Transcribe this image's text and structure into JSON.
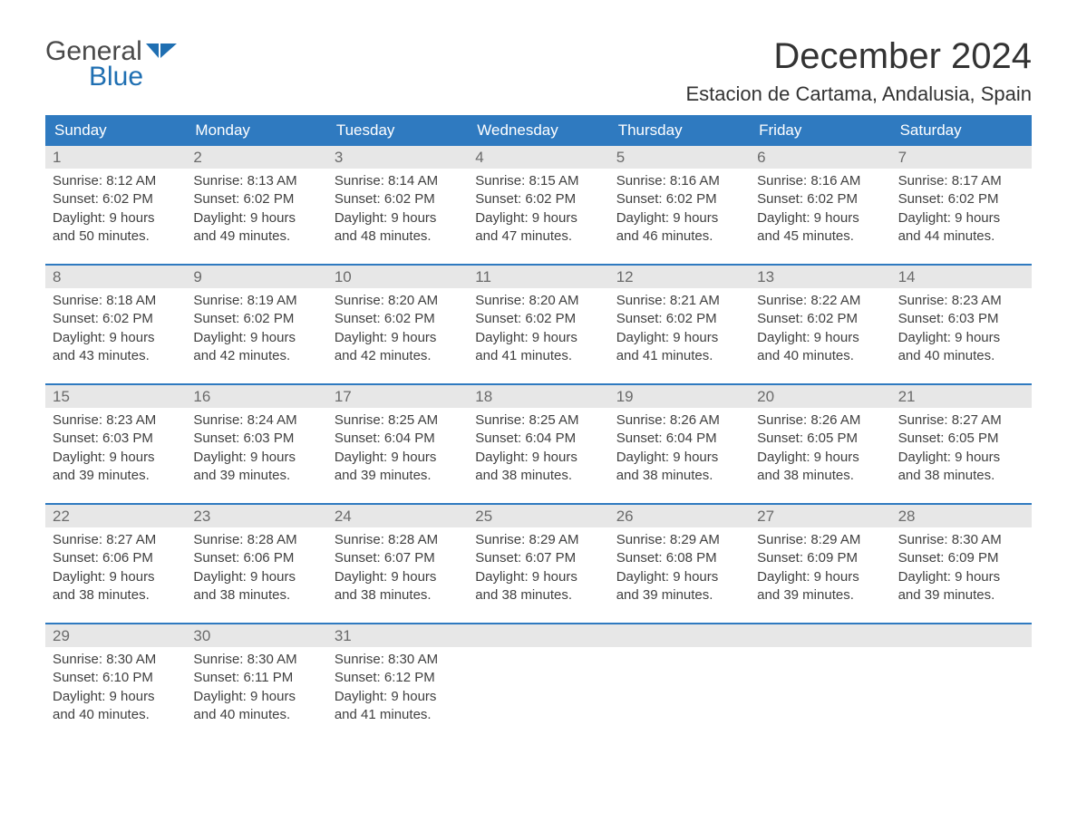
{
  "logo": {
    "general": "General",
    "blue": "Blue",
    "flag_color": "#1f6fb2"
  },
  "title": "December 2024",
  "location": "Estacion de Cartama, Andalusia, Spain",
  "colors": {
    "header_bg": "#2f7ac0",
    "header_text": "#ffffff",
    "week_border": "#2f7ac0",
    "daynum_bg": "#e7e7e7",
    "daynum_text": "#6b6b6b",
    "body_text": "#404040",
    "title_text": "#333333",
    "logo_gray": "#4a4a4a",
    "logo_blue": "#1f6fb2",
    "background": "#ffffff"
  },
  "typography": {
    "title_fontsize": 40,
    "location_fontsize": 22,
    "dayheader_fontsize": 17,
    "daynum_fontsize": 17,
    "daydata_fontsize": 15,
    "logo_fontsize": 30
  },
  "day_headers": [
    "Sunday",
    "Monday",
    "Tuesday",
    "Wednesday",
    "Thursday",
    "Friday",
    "Saturday"
  ],
  "weeks": [
    [
      {
        "n": "1",
        "sunrise": "Sunrise: 8:12 AM",
        "sunset": "Sunset: 6:02 PM",
        "d1": "Daylight: 9 hours",
        "d2": "and 50 minutes."
      },
      {
        "n": "2",
        "sunrise": "Sunrise: 8:13 AM",
        "sunset": "Sunset: 6:02 PM",
        "d1": "Daylight: 9 hours",
        "d2": "and 49 minutes."
      },
      {
        "n": "3",
        "sunrise": "Sunrise: 8:14 AM",
        "sunset": "Sunset: 6:02 PM",
        "d1": "Daylight: 9 hours",
        "d2": "and 48 minutes."
      },
      {
        "n": "4",
        "sunrise": "Sunrise: 8:15 AM",
        "sunset": "Sunset: 6:02 PM",
        "d1": "Daylight: 9 hours",
        "d2": "and 47 minutes."
      },
      {
        "n": "5",
        "sunrise": "Sunrise: 8:16 AM",
        "sunset": "Sunset: 6:02 PM",
        "d1": "Daylight: 9 hours",
        "d2": "and 46 minutes."
      },
      {
        "n": "6",
        "sunrise": "Sunrise: 8:16 AM",
        "sunset": "Sunset: 6:02 PM",
        "d1": "Daylight: 9 hours",
        "d2": "and 45 minutes."
      },
      {
        "n": "7",
        "sunrise": "Sunrise: 8:17 AM",
        "sunset": "Sunset: 6:02 PM",
        "d1": "Daylight: 9 hours",
        "d2": "and 44 minutes."
      }
    ],
    [
      {
        "n": "8",
        "sunrise": "Sunrise: 8:18 AM",
        "sunset": "Sunset: 6:02 PM",
        "d1": "Daylight: 9 hours",
        "d2": "and 43 minutes."
      },
      {
        "n": "9",
        "sunrise": "Sunrise: 8:19 AM",
        "sunset": "Sunset: 6:02 PM",
        "d1": "Daylight: 9 hours",
        "d2": "and 42 minutes."
      },
      {
        "n": "10",
        "sunrise": "Sunrise: 8:20 AM",
        "sunset": "Sunset: 6:02 PM",
        "d1": "Daylight: 9 hours",
        "d2": "and 42 minutes."
      },
      {
        "n": "11",
        "sunrise": "Sunrise: 8:20 AM",
        "sunset": "Sunset: 6:02 PM",
        "d1": "Daylight: 9 hours",
        "d2": "and 41 minutes."
      },
      {
        "n": "12",
        "sunrise": "Sunrise: 8:21 AM",
        "sunset": "Sunset: 6:02 PM",
        "d1": "Daylight: 9 hours",
        "d2": "and 41 minutes."
      },
      {
        "n": "13",
        "sunrise": "Sunrise: 8:22 AM",
        "sunset": "Sunset: 6:02 PM",
        "d1": "Daylight: 9 hours",
        "d2": "and 40 minutes."
      },
      {
        "n": "14",
        "sunrise": "Sunrise: 8:23 AM",
        "sunset": "Sunset: 6:03 PM",
        "d1": "Daylight: 9 hours",
        "d2": "and 40 minutes."
      }
    ],
    [
      {
        "n": "15",
        "sunrise": "Sunrise: 8:23 AM",
        "sunset": "Sunset: 6:03 PM",
        "d1": "Daylight: 9 hours",
        "d2": "and 39 minutes."
      },
      {
        "n": "16",
        "sunrise": "Sunrise: 8:24 AM",
        "sunset": "Sunset: 6:03 PM",
        "d1": "Daylight: 9 hours",
        "d2": "and 39 minutes."
      },
      {
        "n": "17",
        "sunrise": "Sunrise: 8:25 AM",
        "sunset": "Sunset: 6:04 PM",
        "d1": "Daylight: 9 hours",
        "d2": "and 39 minutes."
      },
      {
        "n": "18",
        "sunrise": "Sunrise: 8:25 AM",
        "sunset": "Sunset: 6:04 PM",
        "d1": "Daylight: 9 hours",
        "d2": "and 38 minutes."
      },
      {
        "n": "19",
        "sunrise": "Sunrise: 8:26 AM",
        "sunset": "Sunset: 6:04 PM",
        "d1": "Daylight: 9 hours",
        "d2": "and 38 minutes."
      },
      {
        "n": "20",
        "sunrise": "Sunrise: 8:26 AM",
        "sunset": "Sunset: 6:05 PM",
        "d1": "Daylight: 9 hours",
        "d2": "and 38 minutes."
      },
      {
        "n": "21",
        "sunrise": "Sunrise: 8:27 AM",
        "sunset": "Sunset: 6:05 PM",
        "d1": "Daylight: 9 hours",
        "d2": "and 38 minutes."
      }
    ],
    [
      {
        "n": "22",
        "sunrise": "Sunrise: 8:27 AM",
        "sunset": "Sunset: 6:06 PM",
        "d1": "Daylight: 9 hours",
        "d2": "and 38 minutes."
      },
      {
        "n": "23",
        "sunrise": "Sunrise: 8:28 AM",
        "sunset": "Sunset: 6:06 PM",
        "d1": "Daylight: 9 hours",
        "d2": "and 38 minutes."
      },
      {
        "n": "24",
        "sunrise": "Sunrise: 8:28 AM",
        "sunset": "Sunset: 6:07 PM",
        "d1": "Daylight: 9 hours",
        "d2": "and 38 minutes."
      },
      {
        "n": "25",
        "sunrise": "Sunrise: 8:29 AM",
        "sunset": "Sunset: 6:07 PM",
        "d1": "Daylight: 9 hours",
        "d2": "and 38 minutes."
      },
      {
        "n": "26",
        "sunrise": "Sunrise: 8:29 AM",
        "sunset": "Sunset: 6:08 PM",
        "d1": "Daylight: 9 hours",
        "d2": "and 39 minutes."
      },
      {
        "n": "27",
        "sunrise": "Sunrise: 8:29 AM",
        "sunset": "Sunset: 6:09 PM",
        "d1": "Daylight: 9 hours",
        "d2": "and 39 minutes."
      },
      {
        "n": "28",
        "sunrise": "Sunrise: 8:30 AM",
        "sunset": "Sunset: 6:09 PM",
        "d1": "Daylight: 9 hours",
        "d2": "and 39 minutes."
      }
    ],
    [
      {
        "n": "29",
        "sunrise": "Sunrise: 8:30 AM",
        "sunset": "Sunset: 6:10 PM",
        "d1": "Daylight: 9 hours",
        "d2": "and 40 minutes."
      },
      {
        "n": "30",
        "sunrise": "Sunrise: 8:30 AM",
        "sunset": "Sunset: 6:11 PM",
        "d1": "Daylight: 9 hours",
        "d2": "and 40 minutes."
      },
      {
        "n": "31",
        "sunrise": "Sunrise: 8:30 AM",
        "sunset": "Sunset: 6:12 PM",
        "d1": "Daylight: 9 hours",
        "d2": "and 41 minutes."
      },
      {
        "empty": true
      },
      {
        "empty": true
      },
      {
        "empty": true
      },
      {
        "empty": true
      }
    ]
  ]
}
